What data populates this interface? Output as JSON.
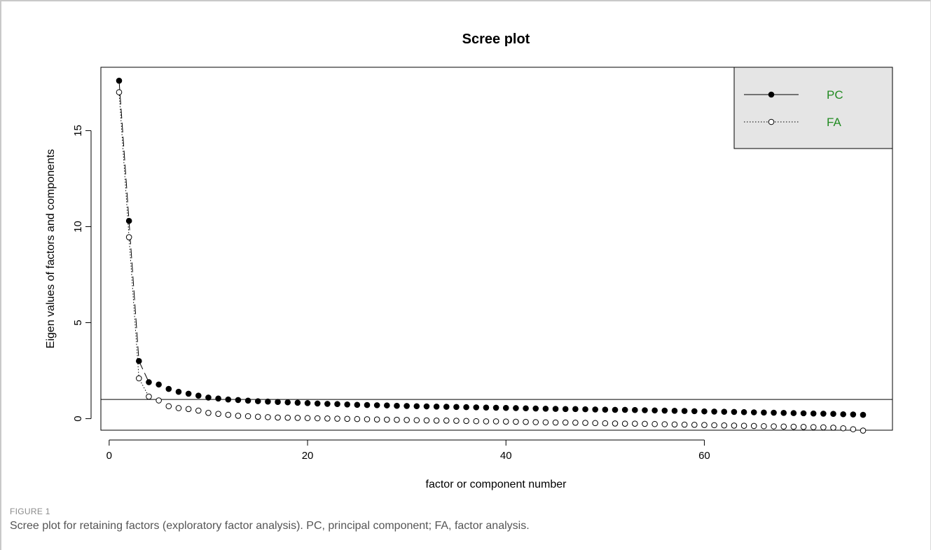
{
  "figure": {
    "label": "FIGURE 1",
    "caption": "Scree plot for retaining factors (exploratory factor analysis). PC, principal component; FA, factor analysis."
  },
  "chart_data": {
    "type": "scatter",
    "title": "Scree plot",
    "xlabel": "factor or component number",
    "ylabel": "Eigen values of factors and components",
    "xlim": [
      0,
      76
    ],
    "ylim": [
      -0.6,
      18.3
    ],
    "x_ticks": [
      0,
      20,
      40,
      60
    ],
    "y_ticks": [
      0,
      5,
      10,
      15
    ],
    "reference_line": 1,
    "legend": {
      "position": "top-right",
      "entries": [
        "PC",
        "FA"
      ],
      "text_color": "#228B22",
      "background": "#e5e5e5"
    },
    "series": [
      {
        "name": "PC",
        "marker": "filled-circle",
        "line": "solid",
        "values": [
          17.6,
          10.3,
          3.0,
          1.9,
          1.78,
          1.55,
          1.4,
          1.3,
          1.2,
          1.1,
          1.05,
          1.0,
          0.97,
          0.94,
          0.91,
          0.89,
          0.87,
          0.85,
          0.83,
          0.81,
          0.79,
          0.77,
          0.76,
          0.74,
          0.72,
          0.71,
          0.7,
          0.69,
          0.67,
          0.66,
          0.65,
          0.64,
          0.63,
          0.62,
          0.61,
          0.6,
          0.59,
          0.58,
          0.57,
          0.56,
          0.55,
          0.54,
          0.53,
          0.52,
          0.51,
          0.5,
          0.5,
          0.49,
          0.48,
          0.47,
          0.46,
          0.46,
          0.45,
          0.44,
          0.43,
          0.42,
          0.41,
          0.4,
          0.39,
          0.38,
          0.37,
          0.36,
          0.35,
          0.34,
          0.33,
          0.32,
          0.31,
          0.3,
          0.29,
          0.28,
          0.27,
          0.26,
          0.25,
          0.23,
          0.22,
          0.2
        ]
      },
      {
        "name": "FA",
        "marker": "open-circle",
        "line": "dotted",
        "values": [
          17.0,
          9.45,
          2.1,
          1.15,
          0.95,
          0.65,
          0.55,
          0.5,
          0.42,
          0.3,
          0.25,
          0.2,
          0.15,
          0.13,
          0.1,
          0.08,
          0.06,
          0.05,
          0.04,
          0.03,
          0.02,
          0.01,
          0.0,
          -0.01,
          -0.02,
          -0.03,
          -0.04,
          -0.05,
          -0.06,
          -0.07,
          -0.08,
          -0.09,
          -0.1,
          -0.1,
          -0.11,
          -0.12,
          -0.13,
          -0.14,
          -0.14,
          -0.15,
          -0.16,
          -0.17,
          -0.18,
          -0.19,
          -0.2,
          -0.2,
          -0.21,
          -0.22,
          -0.23,
          -0.24,
          -0.25,
          -0.26,
          -0.26,
          -0.27,
          -0.28,
          -0.29,
          -0.3,
          -0.31,
          -0.32,
          -0.33,
          -0.34,
          -0.35,
          -0.36,
          -0.37,
          -0.38,
          -0.39,
          -0.4,
          -0.41,
          -0.42,
          -0.43,
          -0.44,
          -0.45,
          -0.47,
          -0.5,
          -0.55,
          -0.62
        ]
      }
    ]
  }
}
